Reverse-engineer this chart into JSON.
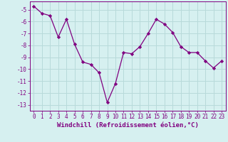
{
  "x": [
    0,
    1,
    2,
    3,
    4,
    5,
    6,
    7,
    8,
    9,
    10,
    11,
    12,
    13,
    14,
    15,
    16,
    17,
    18,
    19,
    20,
    21,
    22,
    23
  ],
  "y": [
    -4.7,
    -5.3,
    -5.5,
    -7.3,
    -5.8,
    -7.9,
    -9.4,
    -9.6,
    -10.3,
    -12.8,
    -11.2,
    -8.6,
    -8.7,
    -8.1,
    -7.0,
    -5.8,
    -6.2,
    -6.9,
    -8.1,
    -8.6,
    -8.6,
    -9.3,
    -9.9,
    -9.3
  ],
  "line_color": "#800080",
  "marker": "D",
  "marker_size": 2.2,
  "bg_color": "#d6f0f0",
  "grid_color": "#b8dada",
  "xlabel": "Windchill (Refroidissement éolien,°C)",
  "xlabel_fontsize": 6.5,
  "tick_fontsize": 5.5,
  "ylim": [
    -13.5,
    -4.3
  ],
  "yticks": [
    -13,
    -12,
    -11,
    -10,
    -9,
    -8,
    -7,
    -6,
    -5
  ],
  "xlim": [
    -0.5,
    23.5
  ],
  "xticks": [
    0,
    1,
    2,
    3,
    4,
    5,
    6,
    7,
    8,
    9,
    10,
    11,
    12,
    13,
    14,
    15,
    16,
    17,
    18,
    19,
    20,
    21,
    22,
    23
  ]
}
